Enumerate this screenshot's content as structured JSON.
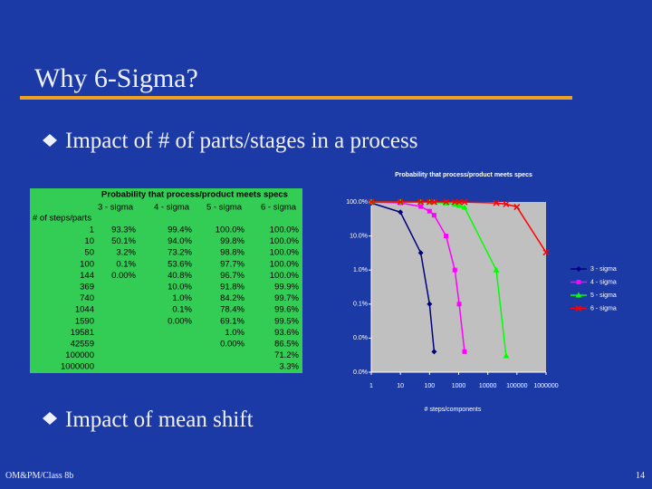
{
  "slide": {
    "title": "Why 6-Sigma?",
    "bullets": [
      "Impact of # of parts/stages in a process",
      "Impact of mean shift"
    ],
    "footer": "OM&PM/Class 8b",
    "page": "14"
  },
  "table": {
    "title": "Probability that process/product meets specs",
    "headers": [
      "# of steps/parts",
      "3 - sigma",
      "4 - sigma",
      "5 - sigma",
      "6 - sigma"
    ],
    "rows": [
      [
        1,
        "93.3%",
        "99.4%",
        "100.0%",
        "100.0%"
      ],
      [
        10,
        "50.1%",
        "94.0%",
        "99.8%",
        "100.0%"
      ],
      [
        50,
        "3.2%",
        "73.2%",
        "98.8%",
        "100.0%"
      ],
      [
        100,
        "0.1%",
        "53.6%",
        "97.7%",
        "100.0%"
      ],
      [
        144,
        "0.00%",
        "40.8%",
        "96.7%",
        "100.0%"
      ],
      [
        369,
        null,
        "10.0%",
        "91.8%",
        "99.9%"
      ],
      [
        740,
        null,
        "1.0%",
        "84.2%",
        "99.7%"
      ],
      [
        1044,
        null,
        "0.1%",
        "78.4%",
        "99.6%"
      ],
      [
        1590,
        null,
        "0.00%",
        "69.1%",
        "99.5%"
      ],
      [
        19581,
        null,
        null,
        "1.0%",
        "93.6%"
      ],
      [
        42559,
        null,
        null,
        "0.00%",
        "86.5%"
      ],
      [
        100000,
        null,
        null,
        null,
        "71.2%"
      ],
      [
        1000000,
        null,
        null,
        null,
        "3.3%"
      ]
    ]
  },
  "chart_data": {
    "type": "line",
    "title": "Probability that process/product meets specs",
    "x_label": "# steps/components",
    "x": [
      1,
      10,
      50,
      100,
      144,
      369,
      740,
      1044,
      1590,
      19581,
      42559,
      100000,
      1000000
    ],
    "series": [
      {
        "name": "3 - sigma",
        "color": "#000080",
        "marker": "diamond",
        "values": [
          93.3,
          50.1,
          3.2,
          0.1,
          0.004,
          null,
          null,
          null,
          null,
          null,
          null,
          null,
          null
        ]
      },
      {
        "name": "4 - sigma",
        "color": "#ff00ff",
        "marker": "square",
        "values": [
          99.4,
          94.0,
          73.2,
          53.6,
          40.8,
          10.0,
          1.0,
          0.1,
          0.004,
          null,
          null,
          null,
          null
        ]
      },
      {
        "name": "5 - sigma",
        "color": "#00ff00",
        "marker": "triangle",
        "values": [
          100.0,
          99.8,
          98.8,
          97.7,
          96.7,
          91.8,
          84.2,
          78.4,
          69.1,
          1.0,
          0.003,
          null,
          null
        ]
      },
      {
        "name": "6 - sigma",
        "color": "#ff0000",
        "marker": "x",
        "values": [
          100.0,
          100.0,
          100.0,
          100.0,
          100.0,
          99.9,
          99.7,
          99.6,
          99.5,
          93.6,
          86.5,
          71.2,
          3.3
        ]
      }
    ],
    "xlog": true,
    "ylog": true,
    "xlim": [
      1,
      1000000
    ],
    "xticks": [
      1,
      10,
      100,
      1000,
      10000,
      100000,
      1000000
    ],
    "ylim": [
      0.001,
      100
    ],
    "yticks": [
      {
        "value": 100,
        "label": "100.0%"
      },
      {
        "value": 10,
        "label": "10.0%"
      },
      {
        "value": 1,
        "label": "1.0%"
      },
      {
        "value": 0.1,
        "label": "0.1%"
      },
      {
        "value": 0.01,
        "label": "0.0%"
      },
      {
        "value": 0.001,
        "label": "0.0%"
      }
    ],
    "grid": false,
    "legend": "right"
  }
}
